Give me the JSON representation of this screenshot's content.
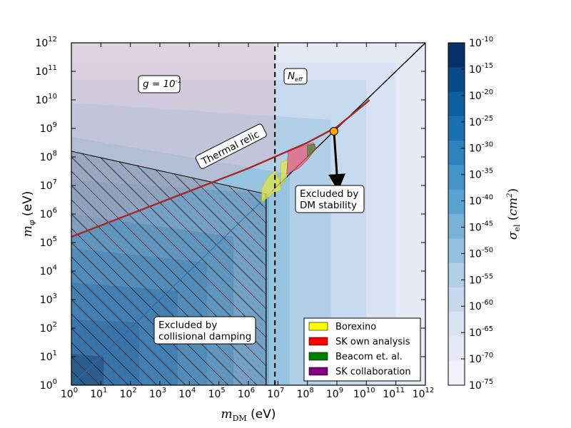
{
  "chart_data": {
    "type": "heatmap",
    "xlabel": "m_DM (eV)",
    "ylabel": "m_φ (eV)",
    "x_scale": "log",
    "y_scale": "log",
    "xlim": [
      1,
      1000000000000.0
    ],
    "ylim": [
      1,
      1000000000000.0
    ],
    "x_ticks": [
      "10^0",
      "10^1",
      "10^2",
      "10^3",
      "10^4",
      "10^5",
      "10^6",
      "10^7",
      "10^8",
      "10^9",
      "10^10",
      "10^11",
      "10^12"
    ],
    "y_ticks": [
      "10^0",
      "10^1",
      "10^2",
      "10^3",
      "10^4",
      "10^5",
      "10^6",
      "10^7",
      "10^8",
      "10^9",
      "10^10",
      "10^11",
      "10^12"
    ],
    "colorbar": {
      "label": "σ_el (cm^2)",
      "ticks": [
        "10^-10",
        "10^-15",
        "10^-20",
        "10^-25",
        "10^-30",
        "10^-35",
        "10^-40",
        "10^-45",
        "10^-50",
        "10^-55",
        "10^-60",
        "10^-65",
        "10^-70",
        "10^-75"
      ],
      "colors": [
        "#08306b",
        "#0b4a86",
        "#0f5fa0",
        "#1b70b1",
        "#2e81bd",
        "#4493c7",
        "#5aa2cf",
        "#78b2d6",
        "#95c2de",
        "#b0cfe6",
        "#c7d9ee",
        "#d9e3f2",
        "#e6eaf5",
        "#f2f1f9"
      ]
    },
    "curves": [
      {
        "name": "Thermal relic",
        "color": "#a52a2a",
        "x": [
          0,
          1,
          2,
          3,
          4,
          5,
          6,
          7,
          8,
          9,
          10,
          10.1
        ],
        "y": [
          5.2,
          5.6,
          6.0,
          6.4,
          6.8,
          7.2,
          7.6,
          8.05,
          8.5,
          9.05,
          9.9,
          10.0
        ]
      },
      {
        "name": "diagonal",
        "color": "#000000",
        "x": [
          6.8,
          12
        ],
        "y": [
          6.8,
          12
        ]
      }
    ],
    "regions": [
      {
        "label": "Excluded by collisional damping",
        "hatched": true
      },
      {
        "label": "Excluded by DM stability"
      }
    ],
    "vertical_line": {
      "x": 6.9,
      "style": "dashed"
    },
    "point": {
      "x": 8.9,
      "y": 8.9,
      "color": "#ffa500"
    },
    "legend": {
      "position": "lower-right",
      "entries": [
        {
          "name": "Borexino",
          "color": "#ffff00"
        },
        {
          "name": "SK own analysis",
          "color": "#ff0000"
        },
        {
          "name": "Beacom et. al.",
          "color": "#008000"
        },
        {
          "name": "SK collaboration",
          "color": "#800080"
        }
      ]
    },
    "annotations": {
      "coupling": "g = 10^-1",
      "neff": "N_eff",
      "thermal_relic": "Thermal relic",
      "damping_line1": "Excluded by",
      "damping_line2": "collisional damping",
      "stability_line1": "Excluded by",
      "stability_line2": "DM stability"
    }
  }
}
